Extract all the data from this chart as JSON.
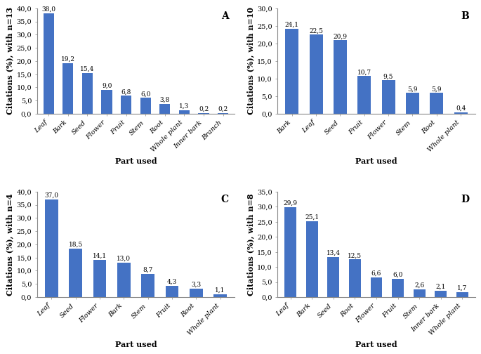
{
  "panels": [
    {
      "label": "A",
      "subtitle": "with n=13",
      "categories": [
        "Leaf",
        "Bark",
        "Seed",
        "Flower",
        "Fruit",
        "Stem",
        "Root",
        "Whole plant",
        "Inner bark",
        "Branch"
      ],
      "values": [
        38.0,
        19.2,
        15.4,
        9.0,
        6.8,
        6.0,
        3.8,
        1.3,
        0.2,
        0.2
      ],
      "ylim": [
        0,
        40
      ],
      "yticks": [
        0,
        5,
        10,
        15,
        20,
        25,
        30,
        35,
        40
      ]
    },
    {
      "label": "B",
      "subtitle": "with n=10",
      "categories": [
        "Bark",
        "Leaf",
        "Seed",
        "Fruit",
        "Flower",
        "Stem",
        "Root",
        "Whole plant"
      ],
      "values": [
        24.1,
        22.5,
        20.9,
        10.7,
        9.5,
        5.9,
        5.9,
        0.4
      ],
      "ylim": [
        0,
        30
      ],
      "yticks": [
        0,
        5,
        10,
        15,
        20,
        25,
        30
      ]
    },
    {
      "label": "C",
      "subtitle": "with n=4",
      "categories": [
        "Leaf",
        "Seed",
        "Flower",
        "Bark",
        "Stem",
        "Fruit",
        "Root",
        "Whole plant"
      ],
      "values": [
        37.0,
        18.5,
        14.1,
        13.0,
        8.7,
        4.3,
        3.3,
        1.1
      ],
      "ylim": [
        0,
        40
      ],
      "yticks": [
        0,
        5,
        10,
        15,
        20,
        25,
        30,
        35,
        40
      ]
    },
    {
      "label": "D",
      "subtitle": "with n=8",
      "categories": [
        "Leaf",
        "Bark",
        "Seed",
        "Root",
        "Flower",
        "Fruit",
        "Stem",
        "Inner bark",
        "Whole plant"
      ],
      "values": [
        29.9,
        25.1,
        13.4,
        12.5,
        6.6,
        6.0,
        2.6,
        2.1,
        1.7
      ],
      "ylim": [
        0,
        35
      ],
      "yticks": [
        0,
        5,
        10,
        15,
        20,
        25,
        30,
        35
      ]
    }
  ],
  "bar_color": "#4472C4",
  "xlabel": "Part used",
  "ylabel_prefix": "Citations (%), ",
  "bar_value_fontsize": 6.5,
  "axis_label_fontsize": 8,
  "tick_fontsize": 7,
  "panel_label_fontsize": 10
}
